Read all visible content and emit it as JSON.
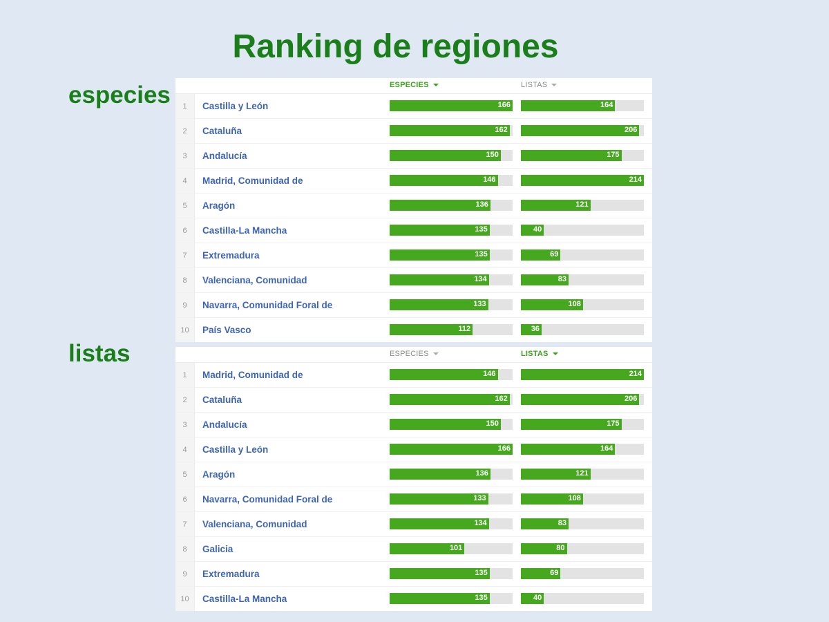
{
  "title": "Ranking de regiones",
  "chart_data": [
    {
      "type": "bar",
      "label": "especies",
      "columns": [
        {
          "key": "especies",
          "label": "ESPECIES",
          "active": true
        },
        {
          "key": "listas",
          "label": "LISTAS",
          "active": false
        }
      ],
      "max": {
        "especies": 166,
        "listas": 214
      },
      "rows": [
        {
          "rank": "1",
          "region": "Castilla y León",
          "especies": 166,
          "listas": 164
        },
        {
          "rank": "2",
          "region": "Cataluña",
          "especies": 162,
          "listas": 206
        },
        {
          "rank": "3",
          "region": "Andalucía",
          "especies": 150,
          "listas": 175
        },
        {
          "rank": "4",
          "region": "Madrid, Comunidad de",
          "especies": 146,
          "listas": 214
        },
        {
          "rank": "5",
          "region": "Aragón",
          "especies": 136,
          "listas": 121
        },
        {
          "rank": "6",
          "region": "Castilla-La Mancha",
          "especies": 135,
          "listas": 40
        },
        {
          "rank": "7",
          "region": "Extremadura",
          "especies": 135,
          "listas": 69
        },
        {
          "rank": "8",
          "region": "Valenciana, Comunidad",
          "especies": 134,
          "listas": 83
        },
        {
          "rank": "9",
          "region": "Navarra, Comunidad Foral de",
          "especies": 133,
          "listas": 108
        },
        {
          "rank": "10",
          "region": "País Vasco",
          "especies": 112,
          "listas": 36
        }
      ]
    },
    {
      "type": "bar",
      "label": "listas",
      "columns": [
        {
          "key": "especies",
          "label": "ESPECIES",
          "active": false
        },
        {
          "key": "listas",
          "label": "LISTAS",
          "active": true
        }
      ],
      "max": {
        "especies": 166,
        "listas": 214
      },
      "rows": [
        {
          "rank": "1",
          "region": "Madrid, Comunidad de",
          "especies": 146,
          "listas": 214
        },
        {
          "rank": "2",
          "region": "Cataluña",
          "especies": 162,
          "listas": 206
        },
        {
          "rank": "3",
          "region": "Andalucía",
          "especies": 150,
          "listas": 175
        },
        {
          "rank": "4",
          "region": "Castilla y León",
          "especies": 166,
          "listas": 164
        },
        {
          "rank": "5",
          "region": "Aragón",
          "especies": 136,
          "listas": 121
        },
        {
          "rank": "6",
          "region": "Navarra, Comunidad Foral de",
          "especies": 133,
          "listas": 108
        },
        {
          "rank": "7",
          "region": "Valenciana, Comunidad",
          "especies": 134,
          "listas": 83
        },
        {
          "rank": "8",
          "region": "Galicia",
          "especies": 101,
          "listas": 80
        },
        {
          "rank": "9",
          "region": "Extremadura",
          "especies": 135,
          "listas": 69
        },
        {
          "rank": "10",
          "region": "Castilla-La Mancha",
          "especies": 135,
          "listas": 40
        }
      ]
    }
  ]
}
